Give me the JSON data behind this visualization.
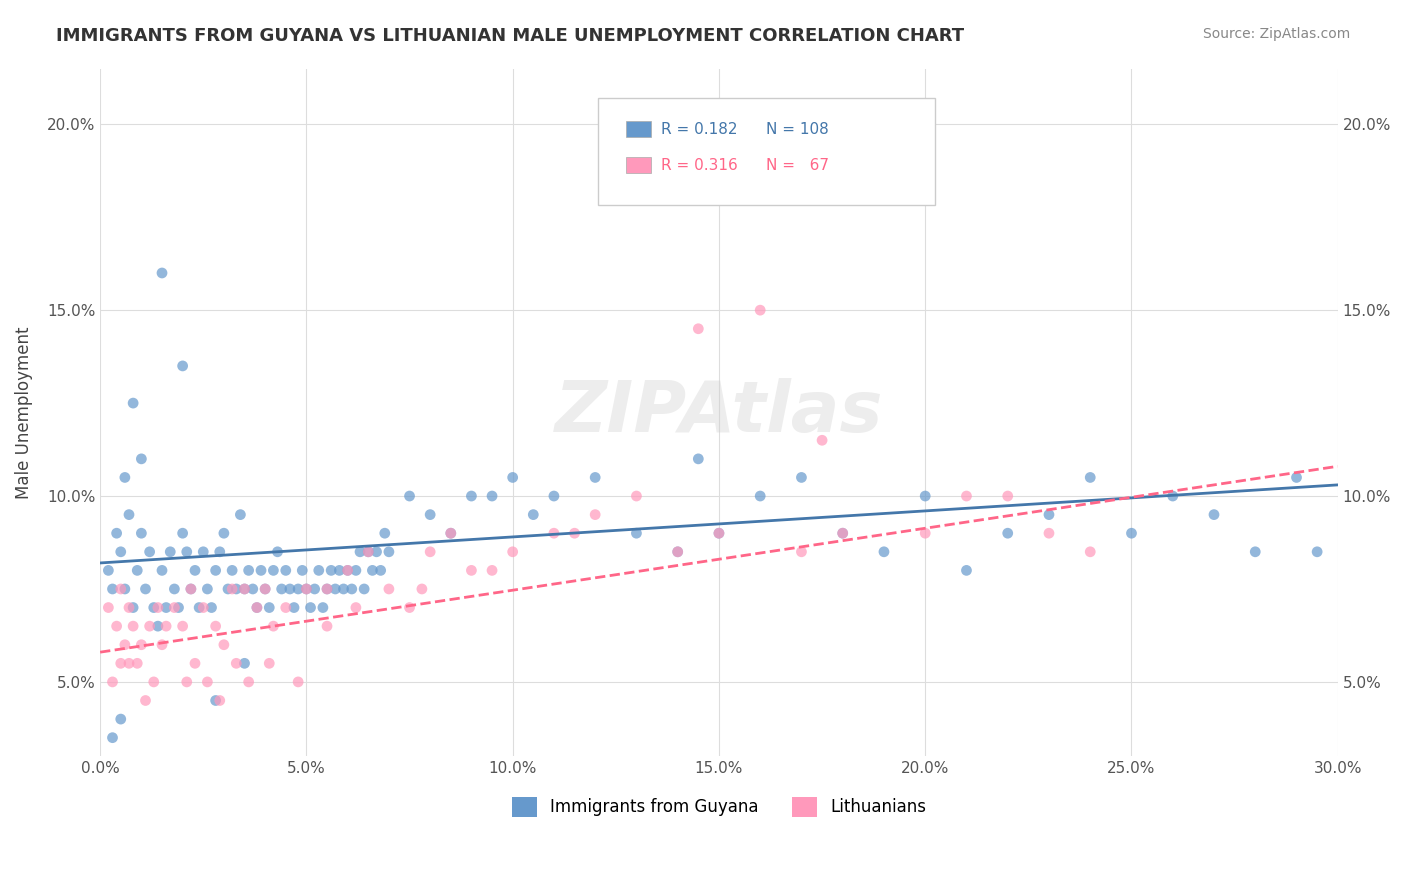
{
  "title": "IMMIGRANTS FROM GUYANA VS LITHUANIAN MALE UNEMPLOYMENT CORRELATION CHART",
  "source": "Source: ZipAtlas.com",
  "xlabel_ticks": [
    "0.0%",
    "5.0%",
    "10.0%",
    "15.0%",
    "20.0%",
    "25.0%",
    "30.0%"
  ],
  "xlabel_vals": [
    0.0,
    5.0,
    10.0,
    15.0,
    20.0,
    25.0,
    30.0
  ],
  "ylabel_ticks": [
    "5.0%",
    "10.0%",
    "15.0%",
    "20.0%"
  ],
  "ylabel_vals": [
    5.0,
    10.0,
    15.0,
    20.0
  ],
  "xlim": [
    0.0,
    30.0
  ],
  "ylim": [
    3.0,
    21.5
  ],
  "blue_color": "#6699CC",
  "pink_color": "#FF99BB",
  "blue_line_color": "#4477AA",
  "pink_line_color": "#FF6688",
  "legend_R1": "0.182",
  "legend_N1": "108",
  "legend_R2": "0.316",
  "legend_N2": " 67",
  "legend_label1": "Immigrants from Guyana",
  "legend_label2": "Lithuanians",
  "watermark": "ZIPAtlas",
  "ylabel": "Male Unemployment",
  "blue_scatter_x": [
    0.2,
    0.3,
    0.4,
    0.5,
    0.6,
    0.7,
    0.8,
    0.9,
    1.0,
    1.1,
    1.2,
    1.3,
    1.4,
    1.5,
    1.6,
    1.7,
    1.8,
    1.9,
    2.0,
    2.1,
    2.2,
    2.3,
    2.4,
    2.5,
    2.6,
    2.7,
    2.8,
    2.9,
    3.0,
    3.1,
    3.2,
    3.3,
    3.4,
    3.5,
    3.6,
    3.7,
    3.8,
    3.9,
    4.0,
    4.1,
    4.2,
    4.3,
    4.4,
    4.5,
    4.6,
    4.7,
    4.8,
    4.9,
    5.0,
    5.1,
    5.2,
    5.3,
    5.4,
    5.5,
    5.6,
    5.7,
    5.8,
    5.9,
    6.0,
    6.1,
    6.2,
    6.3,
    6.4,
    6.5,
    6.6,
    6.7,
    6.8,
    6.9,
    7.0,
    7.5,
    8.0,
    8.5,
    9.0,
    9.5,
    10.0,
    10.5,
    11.0,
    12.0,
    13.0,
    14.0,
    14.5,
    15.0,
    16.0,
    17.0,
    18.0,
    19.0,
    20.0,
    21.0,
    22.0,
    23.0,
    24.0,
    25.0,
    26.0,
    27.0,
    28.0,
    29.0,
    29.5,
    2.0,
    1.5,
    1.0,
    0.8,
    0.6,
    3.5,
    2.8,
    0.5,
    0.3
  ],
  "blue_scatter_y": [
    8.0,
    7.5,
    9.0,
    8.5,
    10.5,
    9.5,
    7.0,
    8.0,
    9.0,
    7.5,
    8.5,
    7.0,
    6.5,
    8.0,
    7.0,
    8.5,
    7.5,
    7.0,
    9.0,
    8.5,
    7.5,
    8.0,
    7.0,
    8.5,
    7.5,
    7.0,
    8.0,
    8.5,
    9.0,
    7.5,
    8.0,
    7.5,
    9.5,
    7.5,
    8.0,
    7.5,
    7.0,
    8.0,
    7.5,
    7.0,
    8.0,
    8.5,
    7.5,
    8.0,
    7.5,
    7.0,
    7.5,
    8.0,
    7.5,
    7.0,
    7.5,
    8.0,
    7.0,
    7.5,
    8.0,
    7.5,
    8.0,
    7.5,
    8.0,
    7.5,
    8.0,
    8.5,
    7.5,
    8.5,
    8.0,
    8.5,
    8.0,
    9.0,
    8.5,
    10.0,
    9.5,
    9.0,
    10.0,
    10.0,
    10.5,
    9.5,
    10.0,
    10.5,
    9.0,
    8.5,
    11.0,
    9.0,
    10.0,
    10.5,
    9.0,
    8.5,
    10.0,
    8.0,
    9.0,
    9.5,
    10.5,
    9.0,
    10.0,
    9.5,
    8.5,
    10.5,
    8.5,
    13.5,
    16.0,
    11.0,
    12.5,
    7.5,
    5.5,
    4.5,
    4.0,
    3.5
  ],
  "pink_scatter_x": [
    0.2,
    0.4,
    0.5,
    0.6,
    0.7,
    0.8,
    0.9,
    1.0,
    1.2,
    1.4,
    1.5,
    1.6,
    1.8,
    2.0,
    2.2,
    2.5,
    2.8,
    3.0,
    3.2,
    3.5,
    3.8,
    4.0,
    4.2,
    4.5,
    5.0,
    5.5,
    6.0,
    6.5,
    7.0,
    7.5,
    8.0,
    8.5,
    9.0,
    10.0,
    11.0,
    12.0,
    13.0,
    14.0,
    15.0,
    16.0,
    17.0,
    18.0,
    20.0,
    22.0,
    24.0,
    0.3,
    0.5,
    0.7,
    1.1,
    1.3,
    2.1,
    2.3,
    2.6,
    2.9,
    3.3,
    3.6,
    4.1,
    4.8,
    5.5,
    6.2,
    7.8,
    9.5,
    11.5,
    14.5,
    17.5,
    21.0,
    23.0
  ],
  "pink_scatter_y": [
    7.0,
    6.5,
    7.5,
    6.0,
    7.0,
    6.5,
    5.5,
    6.0,
    6.5,
    7.0,
    6.0,
    6.5,
    7.0,
    6.5,
    7.5,
    7.0,
    6.5,
    6.0,
    7.5,
    7.5,
    7.0,
    7.5,
    6.5,
    7.0,
    7.5,
    7.5,
    8.0,
    8.5,
    7.5,
    7.0,
    8.5,
    9.0,
    8.0,
    8.5,
    9.0,
    9.5,
    10.0,
    8.5,
    9.0,
    15.0,
    8.5,
    9.0,
    9.0,
    10.0,
    8.5,
    5.0,
    5.5,
    5.5,
    4.5,
    5.0,
    5.0,
    5.5,
    5.0,
    4.5,
    5.5,
    5.0,
    5.5,
    5.0,
    6.5,
    7.0,
    7.5,
    8.0,
    9.0,
    14.5,
    11.5,
    10.0,
    9.0
  ],
  "blue_trend_x": [
    0.0,
    30.0
  ],
  "blue_trend_y_start": 8.2,
  "blue_trend_y_end": 10.3,
  "pink_trend_x": [
    0.0,
    30.0
  ],
  "pink_trend_y_start": 5.8,
  "pink_trend_y_end": 10.8
}
